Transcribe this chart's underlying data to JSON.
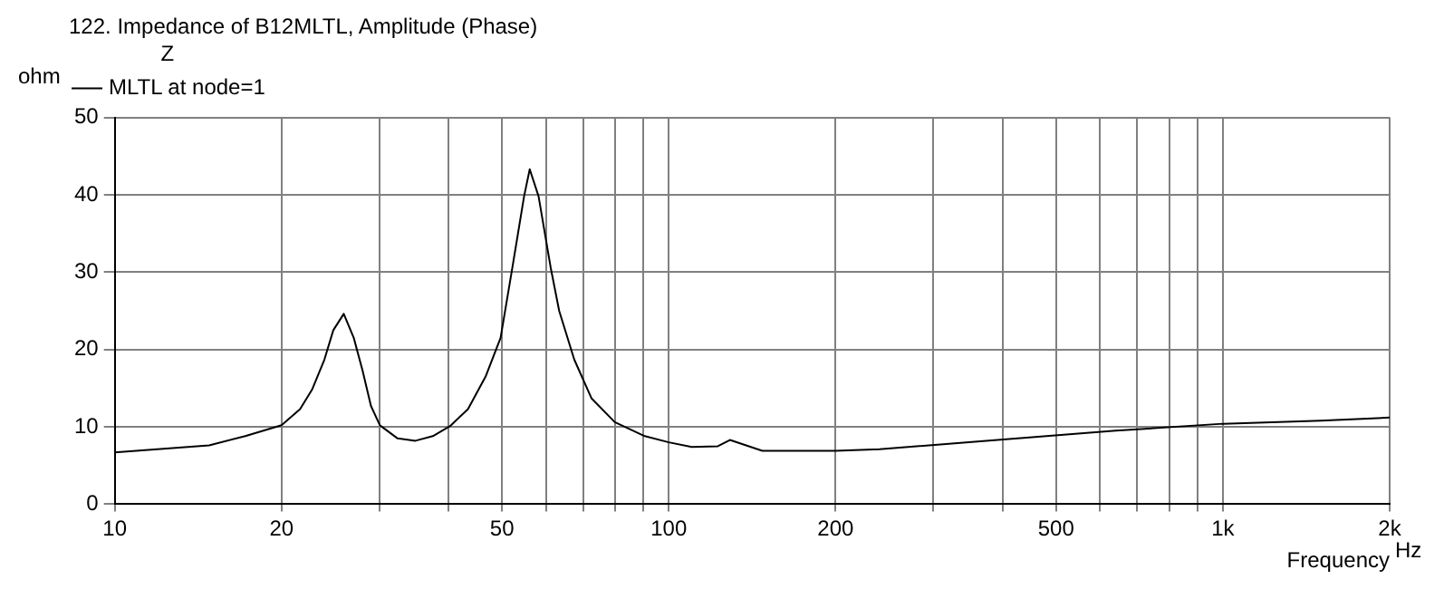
{
  "chart_data": {
    "type": "line",
    "title": "122. Impedance of B12MLTL, Amplitude (Phase)",
    "ylabel": "ohm",
    "xlabel": "Frequency",
    "legend_title": "Z",
    "legend": "top left",
    "annotations": [
      "Hz"
    ],
    "log": "x",
    "grid": true,
    "marker": "none",
    "line_style": "solid",
    "xlim": [
      10,
      2000
    ],
    "xticks": [
      10,
      20,
      {
        "value": 30,
        "label": null
      },
      {
        "value": 40,
        "label": null
      },
      50,
      {
        "value": 60,
        "label": null
      },
      {
        "value": 70,
        "label": null
      },
      {
        "value": 80,
        "label": null
      },
      {
        "value": 90,
        "label": null
      },
      100,
      200,
      {
        "value": 300,
        "label": null
      },
      {
        "value": 400,
        "label": null
      },
      500,
      {
        "value": 600,
        "label": null
      },
      {
        "value": 700,
        "label": null
      },
      {
        "value": 800,
        "label": null
      },
      {
        "value": 900,
        "label": null
      },
      {
        "value": 1000,
        "label": "1k"
      },
      {
        "value": 2000,
        "label": "2k"
      }
    ],
    "ylim": [
      0,
      50
    ],
    "yticks": [
      0,
      10,
      20,
      30,
      40,
      50
    ],
    "x": [
      10,
      14.8,
      17.2,
      20,
      21.6,
      22.7,
      23.9,
      24.8,
      25.9,
      27,
      28,
      29,
      30.1,
      32.4,
      34.9,
      37.5,
      40.3,
      43.4,
      46.7,
      49.7,
      52.2,
      54.8,
      56.1,
      58.2,
      61.2,
      63.4,
      67.5,
      72.5,
      79.9,
      90.5,
      100,
      110,
      122.6,
      128.9,
      147.5,
      200,
      240,
      392,
      640,
      1000,
      1500,
      2000
    ],
    "series": [
      {
        "name": "MLTL at node=1",
        "color": "#000000",
        "values": [
          6.7,
          7.6,
          8.8,
          10.2,
          12.3,
          14.8,
          18.7,
          22.5,
          24.6,
          21.5,
          17.3,
          12.7,
          10.2,
          8.5,
          8.2,
          8.8,
          10.1,
          12.3,
          16.5,
          21.5,
          30.6,
          39.8,
          43.3,
          39.8,
          30.6,
          25,
          18.7,
          13.7,
          10.6,
          8.8,
          8,
          7.4,
          7.5,
          8.3,
          6.9,
          6.9,
          7.1,
          8.3,
          9.5,
          10.4,
          10.8,
          11.2
        ]
      }
    ]
  }
}
